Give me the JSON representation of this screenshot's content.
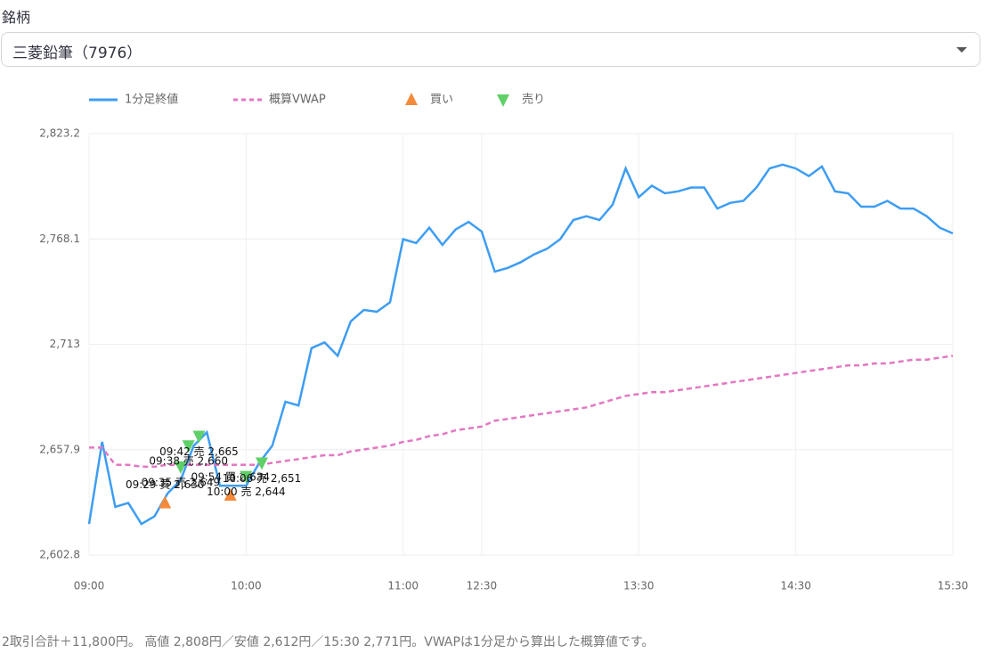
{
  "stock_label": "銘柄",
  "stock_select": "三菱鉛筆（7976）",
  "chart_data": {
    "type": "line",
    "x": [
      "09:00",
      "09:05",
      "09:10",
      "09:15",
      "09:20",
      "09:25",
      "09:30",
      "09:35",
      "09:40",
      "09:45",
      "09:50",
      "09:55",
      "10:00",
      "10:05",
      "10:10",
      "10:15",
      "10:20",
      "10:25",
      "10:30",
      "10:35",
      "10:40",
      "10:45",
      "10:50",
      "10:55",
      "11:00",
      "11:05",
      "11:10",
      "11:15",
      "11:20",
      "11:25",
      "11:30",
      "12:35",
      "12:40",
      "12:45",
      "12:50",
      "12:55",
      "13:00",
      "13:05",
      "13:10",
      "13:15",
      "13:20",
      "13:25",
      "13:30",
      "13:35",
      "13:40",
      "13:45",
      "13:50",
      "13:55",
      "14:00",
      "14:05",
      "14:10",
      "14:15",
      "14:20",
      "14:25",
      "14:30",
      "14:35",
      "14:40",
      "14:45",
      "14:50",
      "14:55",
      "15:00",
      "15:05",
      "15:10",
      "15:15",
      "15:20",
      "15:25",
      "15:30"
    ],
    "xticks": [
      "09:00",
      "10:00",
      "11:00",
      "12:30",
      "13:30",
      "14:30",
      "15:30"
    ],
    "ylim": [
      2602.8,
      2823.2
    ],
    "yticks": [
      {
        "value": 2602.8,
        "label": "2,602.8"
      },
      {
        "value": 2657.9,
        "label": "2,657.9"
      },
      {
        "value": 2713,
        "label": "2,713"
      },
      {
        "value": 2768.1,
        "label": "2,768.1"
      },
      {
        "value": 2823.2,
        "label": "2,823.2"
      }
    ],
    "grid": true,
    "series": [
      {
        "name": "1分足終値",
        "color": "#3d9df3",
        "values": [
          2619,
          2662,
          2628,
          2630,
          2619,
          2623,
          2635,
          2642,
          2660,
          2667,
          2639,
          2639,
          2639,
          2651,
          2660,
          2683,
          2681,
          2711,
          2714,
          2707,
          2725,
          2731,
          2730,
          2735,
          2768,
          2766,
          2774,
          2765,
          2773,
          2777,
          2772,
          2751,
          2753,
          2756,
          2760,
          2763,
          2768,
          2778,
          2780,
          2778,
          2786,
          2805,
          2790,
          2796,
          2792,
          2793,
          2795,
          2795,
          2784,
          2787,
          2788,
          2795,
          2805,
          2807,
          2805,
          2801,
          2806,
          2793,
          2792,
          2785,
          2785,
          2788,
          2784,
          2784,
          2780,
          2774,
          2771
        ]
      },
      {
        "name": "概算VWAP",
        "color": "#e377c2",
        "dashed": true,
        "values": [
          2659,
          2659,
          2650,
          2650,
          2649,
          2649,
          2650,
          2650,
          2650,
          2650,
          2650,
          2650,
          2650,
          2650,
          2651,
          2652,
          2653,
          2654,
          2655,
          2655,
          2657,
          2658,
          2659,
          2660,
          2662,
          2663,
          2665,
          2666,
          2668,
          2669,
          2670,
          2673,
          2674,
          2675,
          2676,
          2677,
          2678,
          2679,
          2680,
          2682,
          2684,
          2686,
          2687,
          2688,
          2688,
          2689,
          2690,
          2691,
          2692,
          2693,
          2694,
          2695,
          2696,
          2697,
          2698,
          2699,
          2700,
          2701,
          2702,
          2702,
          2703,
          2703,
          2704,
          2705,
          2705,
          2706,
          2707
        ]
      },
      {
        "name": "買い",
        "color": "#f58a3c",
        "marker": "up",
        "x": [
          "09:29",
          "09:54"
        ],
        "values": [
          2630,
          2634
        ],
        "value_labels": [
          "09:29 買 2,630",
          "09:54 買 2,634"
        ]
      },
      {
        "name": "売り",
        "color": "#5fd068",
        "marker": "down",
        "x": [
          "09:35",
          "09:38",
          "09:42",
          "10:00",
          "10:06"
        ],
        "values": [
          2649,
          2660,
          2665,
          2644,
          2651
        ],
        "value_labels": [
          "09:35 売 2,649",
          "09:38 売 2,660",
          "09:42 売 2,665",
          "10:00 売 2,644",
          "10:06 売 2,651"
        ]
      }
    ]
  },
  "footer": "2取引合計＋11,800円。 高値 2,808円／安値 2,612円／15:30 2,771円。VWAPは1分足から算出した概算値です。"
}
